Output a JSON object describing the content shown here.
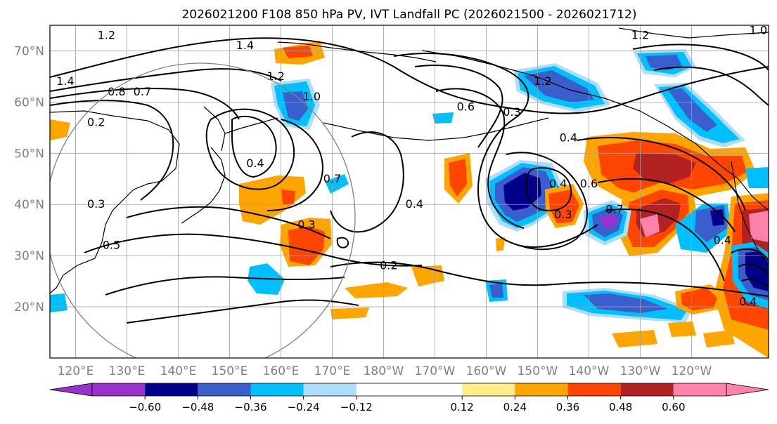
{
  "title": "2026021200 F108 850 hPa PV, IVT Landfall PC (2026021500 - 2026021712)",
  "map": {
    "lat_labels": [
      "70°N",
      "60°N",
      "50°N",
      "40°N",
      "30°N",
      "20°N"
    ],
    "lat_values": [
      70,
      60,
      50,
      40,
      30,
      20
    ],
    "lon_labels": [
      "120°E",
      "130°E",
      "140°E",
      "150°E",
      "160°E",
      "170°E",
      "180°W",
      "170°W",
      "160°W",
      "150°W",
      "140°W",
      "130°W",
      "120°W"
    ],
    "lon_values": [
      120,
      130,
      140,
      150,
      160,
      170,
      180,
      190,
      200,
      210,
      220,
      230,
      240
    ],
    "lat_range": [
      10,
      75
    ],
    "lon_range": [
      115,
      255
    ],
    "grid": true,
    "contour_labels": [
      {
        "text": "1.2",
        "lon": 126,
        "lat": 73
      },
      {
        "text": "1.4",
        "lon": 118,
        "lat": 64
      },
      {
        "text": "0.8",
        "lon": 128,
        "lat": 62
      },
      {
        "text": "0.7",
        "lon": 133,
        "lat": 62
      },
      {
        "text": "1.4",
        "lon": 153,
        "lat": 71
      },
      {
        "text": "1.2",
        "lon": 159,
        "lat": 65
      },
      {
        "text": "1.0",
        "lon": 166,
        "lat": 61
      },
      {
        "text": "0.2",
        "lon": 124,
        "lat": 56
      },
      {
        "text": "0.4",
        "lon": 155,
        "lat": 48
      },
      {
        "text": "0.7",
        "lon": 170,
        "lat": 45
      },
      {
        "text": "0.3",
        "lon": 165,
        "lat": 36
      },
      {
        "text": "0.3",
        "lon": 124,
        "lat": 40
      },
      {
        "text": "0.5",
        "lon": 127,
        "lat": 32
      },
      {
        "text": "0.2",
        "lon": 181,
        "lat": 28
      },
      {
        "text": "0.6",
        "lon": 196,
        "lat": 59
      },
      {
        "text": "0.3",
        "lon": 205,
        "lat": 58
      },
      {
        "text": "0.4",
        "lon": 186,
        "lat": 40
      },
      {
        "text": "0.4",
        "lon": 216,
        "lat": 53
      },
      {
        "text": "0.4",
        "lon": 214,
        "lat": 44
      },
      {
        "text": "0.3",
        "lon": 215,
        "lat": 38
      },
      {
        "text": "0.7",
        "lon": 225,
        "lat": 39
      },
      {
        "text": "0.6",
        "lon": 220,
        "lat": 44
      },
      {
        "text": "1.2",
        "lon": 230,
        "lat": 73
      },
      {
        "text": "1.2",
        "lon": 211,
        "lat": 64
      },
      {
        "text": "0.4",
        "lon": 246,
        "lat": 33
      },
      {
        "text": "0.4",
        "lon": 251,
        "lat": 21
      },
      {
        "text": "1.0",
        "lon": 253,
        "lat": 74
      }
    ]
  },
  "colorbar": {
    "levels": [
      -0.72,
      -0.6,
      -0.48,
      -0.36,
      -0.24,
      -0.12,
      0.12,
      0.24,
      0.36,
      0.48,
      0.6,
      0.72
    ],
    "colors": [
      "#9932cc",
      "#00008b",
      "#3a5fcd",
      "#00bfff",
      "#aeddfa",
      "#ffffff",
      "#ffec8b",
      "#ffa500",
      "#ff4500",
      "#b22222",
      "#ff82ab"
    ],
    "extend_colors": {
      "low": "#9932cc",
      "high": "#ff82ab"
    },
    "tick_labels": [
      "−0.60",
      "−0.48",
      "−0.36",
      "−0.24",
      "−0.12",
      "0.12",
      "0.24",
      "0.36",
      "0.48",
      "0.60"
    ],
    "tick_values": [
      -0.6,
      -0.48,
      -0.36,
      -0.24,
      -0.12,
      0.12,
      0.24,
      0.36,
      0.48,
      0.6
    ]
  }
}
